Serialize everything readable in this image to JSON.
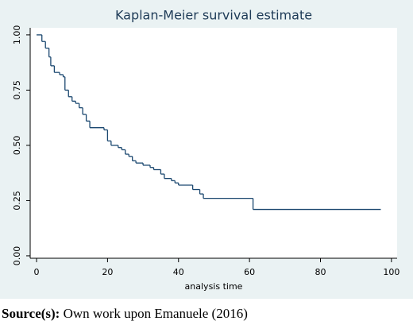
{
  "chart_data": {
    "type": "step",
    "title": "Kaplan-Meier survival estimate",
    "xlabel": "analysis time",
    "x": [
      0,
      1.5,
      2.5,
      3.5,
      4,
      5,
      6.5,
      7.5,
      8,
      9,
      10,
      11,
      12,
      13,
      14,
      15,
      19,
      20,
      21,
      23,
      24,
      25,
      26,
      27,
      28,
      30,
      32,
      33,
      35,
      36,
      38,
      39,
      40,
      44,
      46,
      47,
      61,
      97
    ],
    "values": [
      1.0,
      0.97,
      0.94,
      0.9,
      0.86,
      0.83,
      0.82,
      0.81,
      0.75,
      0.72,
      0.7,
      0.69,
      0.67,
      0.64,
      0.61,
      0.58,
      0.57,
      0.52,
      0.5,
      0.49,
      0.48,
      0.46,
      0.45,
      0.43,
      0.42,
      0.41,
      0.4,
      0.39,
      0.37,
      0.35,
      0.34,
      0.33,
      0.32,
      0.3,
      0.28,
      0.26,
      0.21,
      0.21
    ],
    "color": "#1a476f",
    "xlim": [
      -1.8,
      101.6
    ],
    "xticks": [
      0,
      20,
      40,
      60,
      80,
      100
    ],
    "ylim": [
      -0.011,
      1.032
    ],
    "yticks": [
      {
        "value": 0,
        "label": "0.00"
      },
      {
        "value": 0.25,
        "label": "0.25"
      },
      {
        "value": 0.5,
        "label": "0.50"
      },
      {
        "value": 0.75,
        "label": "0.75"
      },
      {
        "value": 1,
        "label": "1.00"
      }
    ]
  },
  "caption": {
    "label": "Source(s):",
    "text": "Own work upon Emanuele (2016)"
  }
}
